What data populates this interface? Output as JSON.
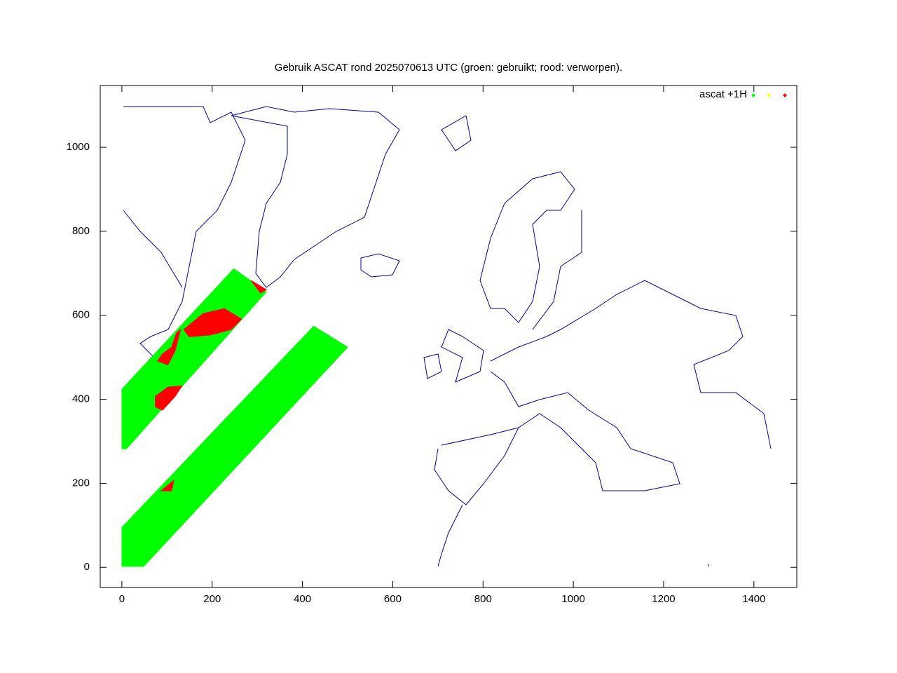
{
  "chart_data": {
    "type": "area",
    "title": "Gebruik ASCAT rond 2025070613 UTC (groen: gebruikt; rood: verworpen).",
    "xlim": [
      -48,
      1495
    ],
    "ylim": [
      -48,
      1147
    ],
    "xticks": [
      0,
      200,
      400,
      600,
      800,
      1000,
      1200,
      1400
    ],
    "yticks": [
      0,
      200,
      400,
      600,
      800,
      1000
    ],
    "legend": "top-right",
    "series": [
      {
        "name": "ascat +1H",
        "color": "#00ff00",
        "x": [
          0,
          0,
          248,
          320,
          10,
          null,
          0,
          0,
          425,
          500,
          48
        ],
        "y": [
          282,
          424,
          711,
          656,
          282,
          null,
          2,
          95,
          574,
          524,
          2
        ]
      },
      {
        "name": null,
        "color": "#ffff00",
        "x": [],
        "y": []
      },
      {
        "name": null,
        "color": "#ff0000",
        "x": [
          137,
          180,
          227,
          265,
          242,
          196,
          149,
          null,
          130,
          118,
          102,
          79,
          90,
          110,
          121,
          null,
          74,
          102,
          133,
          118,
          90,
          74,
          null,
          286,
          320,
          307,
          null,
          87,
          115,
          110
        ],
        "y": [
          566,
          604,
          616,
          591,
          566,
          553,
          549,
          null,
          566,
          516,
          482,
          491,
          508,
          524,
          558,
          null,
          407,
          429,
          432,
          407,
          374,
          382,
          null,
          683,
          661,
          653,
          null,
          182,
          207,
          182
        ]
      }
    ]
  }
}
